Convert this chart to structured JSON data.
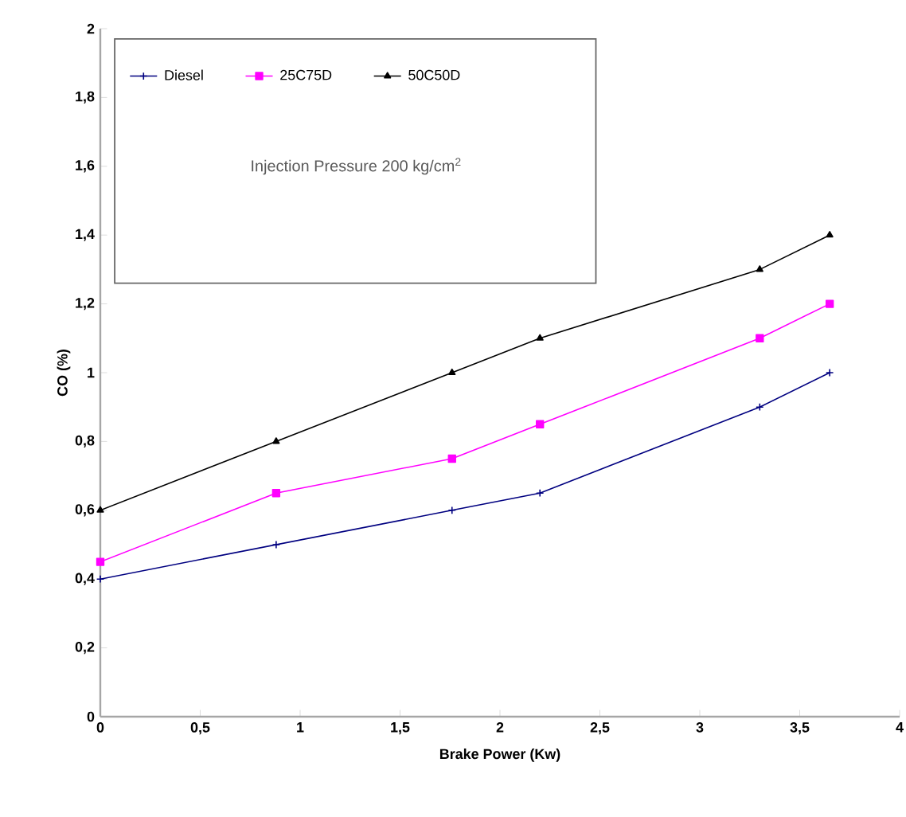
{
  "chart_data": {
    "type": "line",
    "xlabel": "Brake Power (Kw)",
    "ylabel": "CO (%)",
    "x": [
      0,
      0.88,
      1.76,
      2.2,
      3.3,
      3.65
    ],
    "series": [
      {
        "name": "Diesel",
        "color": "#000080",
        "marker": "cross",
        "values": [
          0.4,
          0.5,
          0.6,
          0.65,
          0.9,
          1.0
        ]
      },
      {
        "name": "25C75D",
        "color": "#ff00ff",
        "marker": "square",
        "values": [
          0.45,
          0.65,
          0.75,
          0.85,
          1.1,
          1.2
        ]
      },
      {
        "name": "50C50D",
        "color": "#000000",
        "marker": "triangle",
        "values": [
          0.6,
          0.8,
          1.0,
          1.1,
          1.3,
          1.4
        ]
      }
    ],
    "xlim": [
      0,
      4
    ],
    "ylim": [
      0,
      2
    ],
    "xticks": [
      0,
      {
        "value": 0.5,
        "label": "0,5"
      },
      1,
      {
        "value": 1.5,
        "label": "1,5"
      },
      2,
      {
        "value": 2.5,
        "label": "2,5"
      },
      3,
      {
        "value": 3.5,
        "label": "3,5"
      },
      4
    ],
    "yticks": [
      0,
      {
        "value": 0.2,
        "label": "0,2"
      },
      {
        "value": 0.4,
        "label": "0,4"
      },
      {
        "value": 0.6,
        "label": "0,6"
      },
      {
        "value": 0.8,
        "label": "0,8"
      },
      1,
      {
        "value": 1.2,
        "label": "1,2"
      },
      {
        "value": 1.4,
        "label": "1,4"
      },
      {
        "value": 1.6,
        "label": "1,6"
      },
      {
        "value": 1.8,
        "label": "1,8"
      },
      2
    ],
    "annotations": [
      "Injection Pressure 200 kg/cm$^{2}$"
    ],
    "legend": "top left",
    "grid": false,
    "line_style": "solid"
  }
}
